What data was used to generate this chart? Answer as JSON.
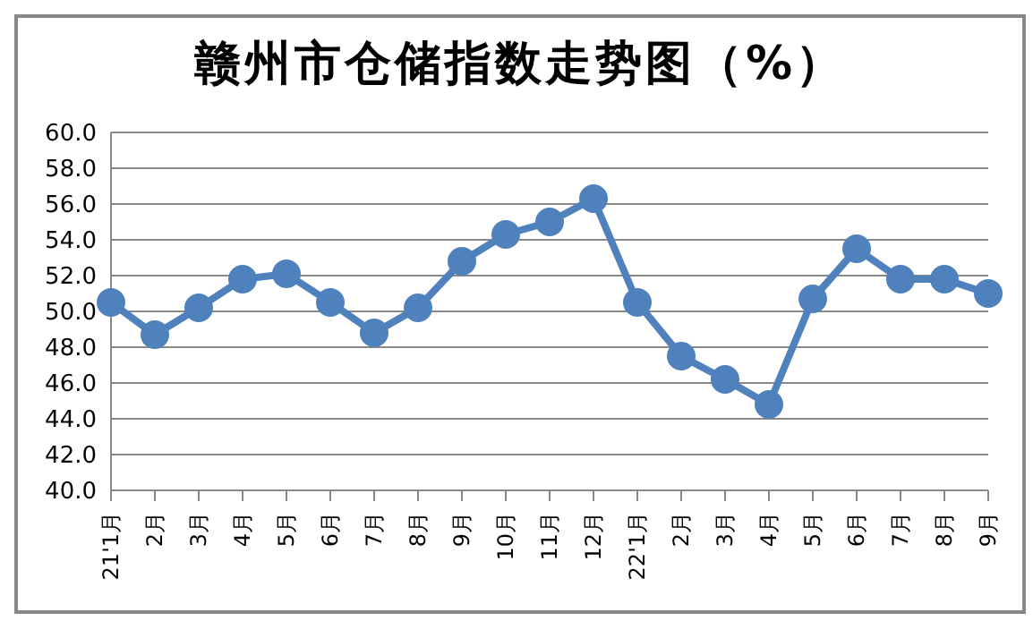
{
  "chart_data": {
    "type": "line",
    "title": "赣州市仓储指数走势图（%）",
    "categories": [
      "21'1月",
      "2月",
      "3月",
      "4月",
      "5月",
      "6月",
      "7月",
      "8月",
      "9月",
      "10月",
      "11月",
      "12月",
      "22'1月",
      "2月",
      "3月",
      "4月",
      "5月",
      "6月",
      "7月",
      "8月",
      "9月"
    ],
    "series": [
      {
        "color": "#4f81bd",
        "values": [
          50.5,
          48.7,
          50.2,
          51.8,
          52.1,
          50.5,
          48.8,
          50.2,
          52.8,
          54.3,
          55.0,
          56.3,
          50.5,
          47.5,
          46.2,
          44.8,
          50.7,
          53.5,
          51.8,
          51.8,
          51.0
        ]
      }
    ],
    "ylim": [
      40,
      60
    ],
    "yticks": [
      {
        "value": 40,
        "label": "40.0"
      },
      {
        "value": 42,
        "label": "42.0"
      },
      {
        "value": 44,
        "label": "44.0"
      },
      {
        "value": 46,
        "label": "46.0"
      },
      {
        "value": 48,
        "label": "48.0"
      },
      {
        "value": 50,
        "label": "50.0"
      },
      {
        "value": 52,
        "label": "52.0"
      },
      {
        "value": 54,
        "label": "54.0"
      },
      {
        "value": 56,
        "label": "56.0"
      },
      {
        "value": 58,
        "label": "58.0"
      },
      {
        "value": 60,
        "label": "60.0"
      }
    ],
    "grid": "y",
    "marker": "circle",
    "line_style": "solid",
    "legend": false
  }
}
